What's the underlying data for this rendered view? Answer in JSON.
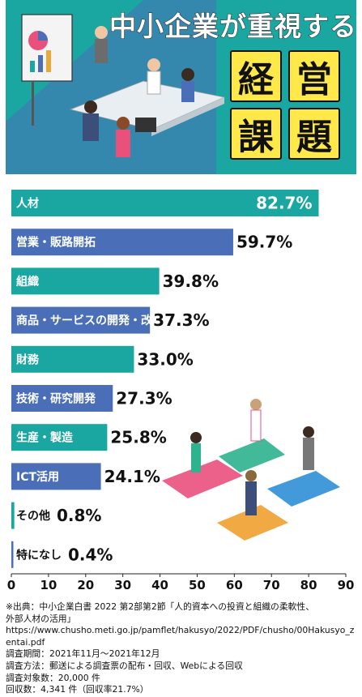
{
  "header": {
    "title": "中小企業が重視する",
    "big_chars": [
      "経",
      "営",
      "課",
      "題"
    ]
  },
  "chart_data": {
    "type": "bar",
    "orientation": "horizontal",
    "title": "中小企業が重視する経営課題",
    "categories": [
      "人材",
      "営業・販路開拓",
      "組織",
      "商品・サービスの開発・改善",
      "財務",
      "技術・研究開発",
      "生産・製造",
      "ICT活用",
      "その他",
      "特になし"
    ],
    "values": [
      82.7,
      59.7,
      39.8,
      37.3,
      33.0,
      27.3,
      25.8,
      24.1,
      0.8,
      0.4
    ],
    "value_labels": [
      "82.7%",
      "59.7%",
      "39.8%",
      "37.3%",
      "33.0%",
      "27.3%",
      "25.8%",
      "24.1%",
      "0.8%",
      "0.4%"
    ],
    "bar_colors": [
      "#1aa6a1",
      "#4a6fb8",
      "#1aa6a1",
      "#4a6fb8",
      "#1aa6a1",
      "#4a6fb8",
      "#1aa6a1",
      "#4a6fb8",
      "#1aa6a1",
      "#4a6fb8"
    ],
    "xlim": [
      0,
      90
    ],
    "xticks": [
      "0",
      "10",
      "20",
      "30",
      "40",
      "50",
      "60",
      "70",
      "80",
      "90"
    ],
    "grid": false
  },
  "footnote": [
    "※出典：中小企業白書 2022 第2部第2節「人的資本への投資と組織の柔軟性、",
    "外部人材の活用」",
    "https://www.chusho.meti.go.jp/pamflet/hakusyo/2022/PDF/chusho/00Hakusyo_z",
    "entai.pdf",
    "調査期間：2021年11月～2021年12月",
    "調査方法：郵送による調査票の配布・回収、Webによる回収",
    "調査対象数：20,000 件",
    "回収数：4,341 件（回収率21.7%）"
  ],
  "colors": {
    "teal": "#1aa6a1",
    "blue": "#4a6fb8",
    "yellow": "#ffe94a"
  }
}
